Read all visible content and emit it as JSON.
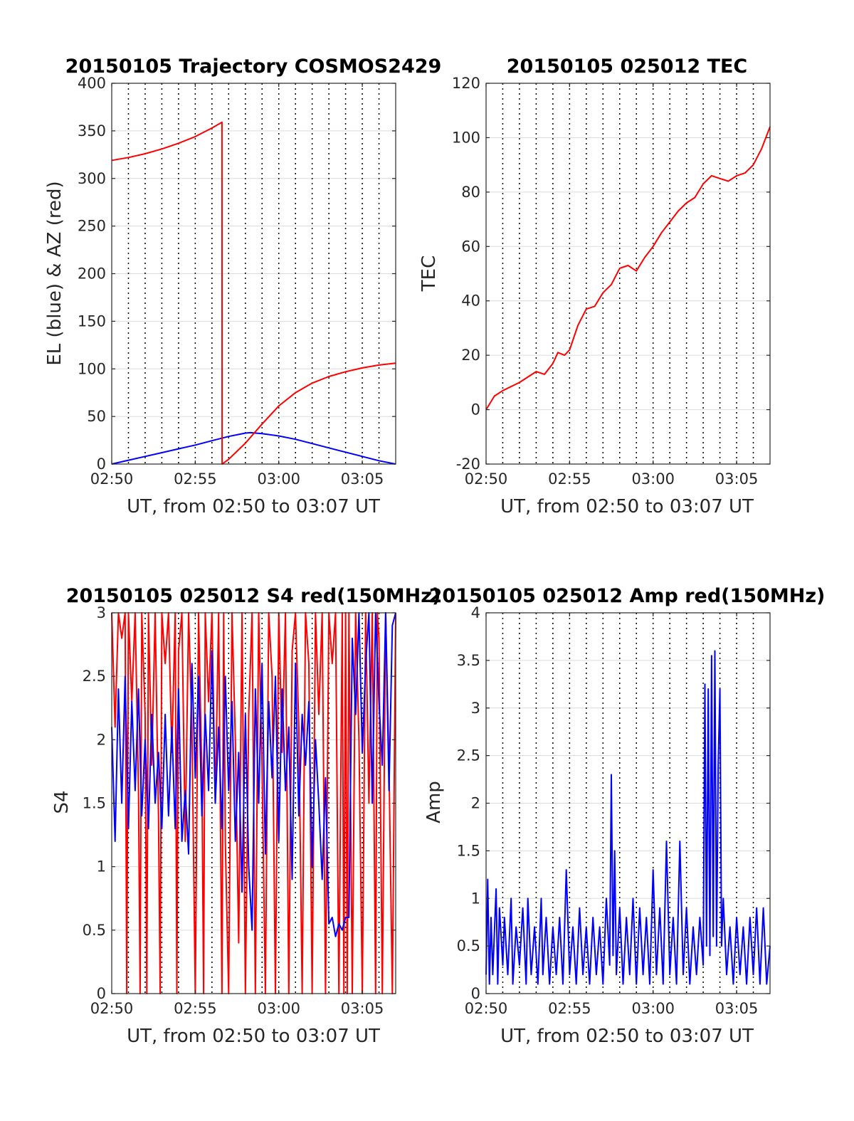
{
  "figure": {
    "background": "#ffffff"
  },
  "colors": {
    "el": "#0000ff",
    "az": "#ff0000",
    "tec": "#ff0000",
    "s4_red": "#ff0000",
    "s4_blue": "#0000ff",
    "amp": "#0000ff",
    "grid": "#000000"
  },
  "chart_data": [
    {
      "id": "trajectory",
      "type": "line",
      "title": "20150105 Trajectory COSMOS2429",
      "xlabel": "UT, from 02:50 to 03:07 UT",
      "ylabel": "EL (blue) & AZ (red)",
      "xlim": [
        0,
        17
      ],
      "ylim": [
        0,
        400
      ],
      "xtick_values": [
        0,
        5,
        10,
        15
      ],
      "xtick_labels": [
        "02:50",
        "02:55",
        "03:00",
        "03:05"
      ],
      "yticks": [
        0,
        50,
        100,
        150,
        200,
        250,
        300,
        350,
        400
      ],
      "grid": true,
      "series": [
        {
          "key": "el",
          "color": "#0000ff",
          "x": [
            0,
            1,
            2,
            3,
            4,
            5,
            6,
            7,
            8,
            8.3,
            9,
            10,
            11,
            12,
            13,
            14,
            15,
            16,
            17
          ],
          "y": [
            0,
            4,
            8,
            12,
            16,
            20,
            24.5,
            29,
            32.5,
            33,
            32,
            29.5,
            26,
            21.5,
            17,
            12.5,
            8,
            3.5,
            0
          ]
        },
        {
          "key": "az",
          "color": "#ff0000",
          "x": [
            0,
            1,
            2,
            3,
            4,
            5,
            6,
            6.6,
            6.61,
            7,
            8,
            9,
            10,
            11,
            12,
            13,
            14,
            15,
            16,
            17
          ],
          "y": [
            319,
            322,
            326,
            331,
            337,
            344,
            353,
            359,
            0,
            5,
            22,
            42,
            61,
            75,
            85,
            92,
            97,
            101,
            104,
            106
          ]
        }
      ]
    },
    {
      "id": "tec",
      "type": "line",
      "title": "20150105 025012 TEC",
      "xlabel": "UT, from 02:50 to 03:07 UT",
      "ylabel": "TEC",
      "xlim": [
        0,
        17
      ],
      "ylim": [
        -20,
        120
      ],
      "xtick_values": [
        0,
        5,
        10,
        15
      ],
      "xtick_labels": [
        "02:50",
        "02:55",
        "03:00",
        "03:05"
      ],
      "yticks": [
        -20,
        0,
        20,
        40,
        60,
        80,
        100,
        120
      ],
      "grid": true,
      "series": [
        {
          "key": "tec",
          "color": "#ff0000",
          "x": [
            0,
            0.5,
            1,
            2,
            3,
            3.5,
            4,
            4.3,
            4.7,
            5,
            5.5,
            6,
            6.5,
            7,
            7.5,
            8,
            8.5,
            9,
            9.5,
            10,
            10.5,
            11,
            11.5,
            12,
            12.5,
            13,
            13.5,
            14,
            14.5,
            15,
            15.5,
            16,
            16.5,
            17
          ],
          "y": [
            0,
            5,
            7,
            10,
            14,
            13,
            17,
            21,
            20,
            22,
            31,
            37,
            38,
            43,
            46,
            52,
            53,
            51,
            56,
            60,
            65,
            69,
            73,
            76,
            78,
            83,
            86,
            85,
            84,
            86,
            87,
            90,
            96,
            104
          ]
        }
      ]
    },
    {
      "id": "s4",
      "type": "line",
      "title": "20150105 025012 S4 red(150MHz)",
      "xlabel": "UT, from 02:50 to 03:07 UT",
      "ylabel": "S4",
      "xlim": [
        0,
        17
      ],
      "ylim": [
        0,
        3
      ],
      "xtick_values": [
        0,
        5,
        10,
        15
      ],
      "xtick_labels": [
        "02:50",
        "02:55",
        "03:00",
        "03:05"
      ],
      "yticks": [
        0,
        0.5,
        1,
        1.5,
        2,
        2.5,
        3
      ],
      "ytick_labels": [
        "0",
        "0.5",
        "1",
        "1.5",
        "2",
        "2.5",
        "3"
      ],
      "grid": true,
      "series": [
        {
          "key": "s4_red",
          "color": "#ff0000",
          "x": [
            0,
            0.2,
            0.4,
            0.6,
            0.8,
            0.9,
            1.0,
            1.2,
            1.4,
            1.6,
            1.7,
            1.8,
            2.0,
            2.1,
            2.2,
            2.4,
            2.6,
            2.8,
            2.9,
            3.0,
            3.2,
            3.4,
            3.6,
            3.8,
            3.9,
            4.0,
            4.2,
            4.4,
            4.6,
            4.8,
            5.0,
            5.2,
            5.4,
            5.5,
            5.6,
            5.8,
            6.0,
            6.2,
            6.4,
            6.6,
            6.7,
            6.8,
            7.0,
            7.2,
            7.4,
            7.6,
            7.8,
            8.0,
            8.2,
            8.4,
            8.6,
            8.8,
            9.0,
            9.2,
            9.4,
            9.6,
            9.8,
            10.0,
            10.2,
            10.4,
            10.6,
            10.8,
            11.0,
            11.2,
            11.4,
            11.6,
            11.8,
            12.0,
            12.2,
            12.4,
            12.6,
            12.8,
            13.0,
            13.2,
            13.4,
            13.6,
            13.8,
            13.9,
            14.0,
            14.1,
            14.2,
            14.4,
            14.6,
            14.8,
            15.0,
            15.2,
            15.4,
            15.6,
            15.8,
            15.9,
            16.0,
            16.2,
            16.4,
            16.6,
            16.8,
            17.0
          ],
          "y": [
            3,
            2.1,
            3,
            2.8,
            3,
            0,
            3,
            2.3,
            3,
            1.6,
            0,
            3,
            2.2,
            0,
            3,
            1.8,
            3,
            1.4,
            0,
            3,
            2.6,
            3,
            1.9,
            3,
            0,
            2.7,
            3,
            1.2,
            3,
            2.1,
            0,
            3,
            1.7,
            0,
            3,
            2.3,
            3,
            1.5,
            3,
            0,
            3,
            1.2,
            0,
            3,
            2.0,
            0.4,
            3,
            0,
            2.2,
            3,
            0,
            3,
            1.8,
            0,
            3,
            2.5,
            0,
            3,
            1.9,
            3,
            0,
            2.7,
            3,
            2.1,
            0,
            3,
            2.6,
            0,
            3,
            2.2,
            3,
            0,
            3,
            2.6,
            3,
            0,
            3,
            0,
            3,
            0,
            3,
            0,
            3,
            2.0,
            0,
            3,
            1.5,
            3,
            0,
            3,
            2.8,
            0,
            3,
            1.8,
            0,
            3
          ]
        },
        {
          "key": "s4_blue",
          "color": "#0000ff",
          "x": [
            0,
            0.2,
            0.4,
            0.6,
            0.8,
            1.0,
            1.2,
            1.4,
            1.6,
            1.8,
            2.0,
            2.2,
            2.4,
            2.6,
            2.8,
            3.0,
            3.2,
            3.4,
            3.6,
            3.8,
            4.0,
            4.2,
            4.4,
            4.6,
            4.8,
            5.0,
            5.2,
            5.4,
            5.6,
            5.8,
            6.0,
            6.2,
            6.4,
            6.6,
            6.8,
            7.0,
            7.2,
            7.4,
            7.6,
            7.8,
            8.0,
            8.2,
            8.4,
            8.6,
            8.8,
            9.0,
            9.2,
            9.4,
            9.6,
            9.8,
            10.0,
            10.2,
            10.4,
            10.6,
            10.8,
            11.0,
            11.2,
            11.4,
            11.6,
            11.8,
            12.0,
            12.2,
            12.4,
            12.6,
            12.8,
            13.0,
            13.2,
            13.4,
            13.6,
            13.8,
            14.0,
            14.2,
            14.4,
            14.6,
            14.8,
            15.0,
            15.2,
            15.4,
            15.6,
            15.8,
            16.0,
            16.2,
            16.4,
            16.6,
            16.8,
            17.0
          ],
          "y": [
            2.1,
            1.2,
            2.4,
            1.5,
            2.5,
            1.3,
            2.3,
            1.6,
            2.4,
            1.4,
            2.0,
            1.3,
            2.2,
            1.5,
            1.9,
            1.3,
            2.2,
            1.4,
            2.1,
            1.3,
            2.4,
            1.2,
            1.6,
            1.1,
            2.6,
            1.7,
            2.5,
            1.4,
            2.2,
            1.6,
            2.7,
            1.5,
            2.1,
            1.3,
            2.5,
            1.6,
            2.3,
            1.2,
            1.9,
            0.8,
            2.2,
            1.0,
            0.5,
            2.4,
            1.5,
            2.6,
            1.1,
            2.3,
            1.7,
            2.5,
            1.2,
            2.4,
            1.6,
            2.1,
            0.9,
            2.6,
            1.4,
            2.2,
            1.8,
            2.3,
            1.0,
            2.0,
            1.5,
            0.9,
            1.7,
            0.55,
            0.6,
            0.45,
            0.55,
            0.5,
            0.6,
            0.6,
            2.8,
            2.2,
            3,
            1.9,
            2.6,
            3,
            1.5,
            3,
            2.3,
            1.8,
            3,
            1.6,
            2.9,
            3
          ]
        }
      ]
    },
    {
      "id": "amp",
      "type": "line",
      "title": "20150105 025012 Amp red(150MHz)",
      "xlabel": "UT, from 02:50 to 03:07 UT",
      "ylabel": "Amp",
      "xlim": [
        0,
        17
      ],
      "ylim": [
        0,
        4
      ],
      "xtick_values": [
        0,
        5,
        10,
        15
      ],
      "xtick_labels": [
        "02:50",
        "02:55",
        "03:00",
        "03:05"
      ],
      "yticks": [
        0,
        0.5,
        1,
        1.5,
        2,
        2.5,
        3,
        3.5,
        4
      ],
      "ytick_labels": [
        "0",
        "0.5",
        "1",
        "1.5",
        "2",
        "2.5",
        "3",
        "3.5",
        "4"
      ],
      "grid": true,
      "series": [
        {
          "key": "amp",
          "color": "#0000ff",
          "x": [
            0,
            0.1,
            0.2,
            0.3,
            0.4,
            0.6,
            0.7,
            0.8,
            1.0,
            1.1,
            1.3,
            1.5,
            1.6,
            1.8,
            2.0,
            2.2,
            2.4,
            2.5,
            2.7,
            2.9,
            3.1,
            3.3,
            3.4,
            3.6,
            3.8,
            4.0,
            4.2,
            4.4,
            4.6,
            4.8,
            5.0,
            5.2,
            5.4,
            5.6,
            5.8,
            6.0,
            6.2,
            6.4,
            6.6,
            6.8,
            7.0,
            7.2,
            7.4,
            7.5,
            7.6,
            7.7,
            7.8,
            8.0,
            8.2,
            8.4,
            8.6,
            8.8,
            9.0,
            9.2,
            9.4,
            9.6,
            9.8,
            10.0,
            10.2,
            10.4,
            10.6,
            10.8,
            11.0,
            11.2,
            11.4,
            11.6,
            11.8,
            12.0,
            12.2,
            12.4,
            12.6,
            12.8,
            13.0,
            13.1,
            13.2,
            13.3,
            13.4,
            13.5,
            13.6,
            13.7,
            13.8,
            13.9,
            14.0,
            14.1,
            14.2,
            14.4,
            14.6,
            14.8,
            15.0,
            15.2,
            15.4,
            15.6,
            15.8,
            16.0,
            16.2,
            16.4,
            16.6,
            16.8,
            17.0
          ],
          "y": [
            0.2,
            1.2,
            0.1,
            0.8,
            0.2,
            1.1,
            0.1,
            0.9,
            0.3,
            0.8,
            0.2,
            1.0,
            0.1,
            0.7,
            0.3,
            0.9,
            0.1,
            1.0,
            0.2,
            0.7,
            0.1,
            1.0,
            0.2,
            0.8,
            0.1,
            0.7,
            0.2,
            0.8,
            0.1,
            1.3,
            0.2,
            0.7,
            0.1,
            0.9,
            0.2,
            0.7,
            0.1,
            0.8,
            0.2,
            0.7,
            0.1,
            1.0,
            0.3,
            2.3,
            0.4,
            1.5,
            0.2,
            0.9,
            0.1,
            0.8,
            0.2,
            1.0,
            0.1,
            0.9,
            0.2,
            0.8,
            0.1,
            1.3,
            0.2,
            0.9,
            0.1,
            1.6,
            0.2,
            0.8,
            0.1,
            1.6,
            0.2,
            0.9,
            0.1,
            0.7,
            0.2,
            0.8,
            0.3,
            3.25,
            0.5,
            3.2,
            0.4,
            3.55,
            0.6,
            3.6,
            0.5,
            2.4,
            3.2,
            0.5,
            1.0,
            0.2,
            0.7,
            0.1,
            0.8,
            0.2,
            0.7,
            0.1,
            0.8,
            0.2,
            0.9,
            0.1,
            0.9,
            0.1,
            0.5
          ]
        }
      ]
    }
  ]
}
